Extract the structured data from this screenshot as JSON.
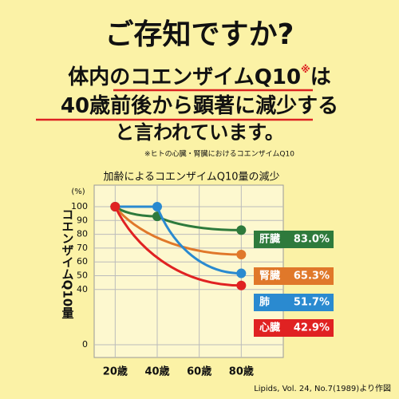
{
  "header": {
    "title": "ご存知ですか?",
    "line1": [
      "体内の",
      "コエンザイムQ10",
      "※",
      "は"
    ],
    "line2": [
      "40歳前後から顕著に減少",
      "する"
    ],
    "line3": "と言われています。",
    "note": "※ヒトの心臓・腎臓におけるコエンザイムQ10"
  },
  "chart_data": {
    "type": "line",
    "title": "加齢によるコエンザイムQ10量の減少",
    "y_label": "コエンザイムQ10量",
    "y_unit": "(%)",
    "xlim": [
      10,
      100
    ],
    "xticks": [
      {
        "value": 20,
        "label": "20歳"
      },
      {
        "value": 40,
        "label": "40歳"
      },
      {
        "value": 60,
        "label": "60歳"
      },
      {
        "value": 80,
        "label": "80歳"
      }
    ],
    "ylim": [
      0,
      100
    ],
    "yticks": [
      0,
      40,
      50,
      60,
      70,
      80,
      90,
      100
    ],
    "grid": true,
    "series": [
      {
        "name": "肝臓",
        "color": "#2e7a3c",
        "x": [
          20,
          40,
          80
        ],
        "values": [
          100,
          93,
          83.0
        ],
        "value_labels": [
          null,
          null,
          "83.0%"
        ]
      },
      {
        "name": "腎臓",
        "color": "#e0782a",
        "x": [
          20,
          80
        ],
        "values": [
          100,
          65.3
        ],
        "value_labels": [
          null,
          "65.3%"
        ]
      },
      {
        "name": "肺",
        "color": "#2a8ad0",
        "x": [
          20,
          40,
          80
        ],
        "values": [
          100,
          100,
          51.7
        ],
        "value_labels": [
          null,
          null,
          "51.7%"
        ]
      },
      {
        "name": "心臓",
        "color": "#e02222",
        "x": [
          20,
          80
        ],
        "values": [
          100,
          42.9
        ],
        "value_labels": [
          null,
          "42.9%"
        ]
      }
    ],
    "source": "Lipids, Vol. 24, No.7(1989)より作図"
  }
}
